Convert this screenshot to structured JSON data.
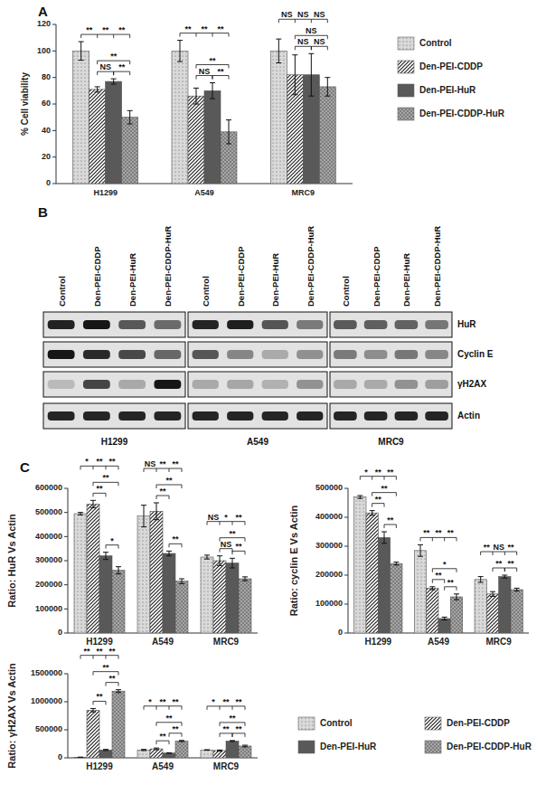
{
  "panel_labels": [
    "A",
    "B",
    "C"
  ],
  "chart_data": [
    {
      "type": "bar",
      "y_label": "% Cell viability",
      "categories": [
        "H1299",
        "A549",
        "MRC9"
      ],
      "series": [
        {
          "name": "Control",
          "color": "#d9d9d9",
          "values": [
            100,
            100,
            100
          ],
          "errors": [
            7,
            8,
            9
          ]
        },
        {
          "name": "Den-PEI-CDDP",
          "color": "#222222",
          "values": [
            71,
            66,
            82
          ],
          "errors": [
            2,
            6,
            15
          ]
        },
        {
          "name": "Den-PEI-HuR",
          "color": "#595959",
          "values": [
            77,
            70,
            82
          ],
          "errors": [
            2,
            6,
            16
          ]
        },
        {
          "name": "Den-PEI-CDDP-HuR",
          "color": "#a6a6a6",
          "values": [
            50,
            39,
            73
          ],
          "errors": [
            5,
            9,
            7
          ]
        }
      ],
      "ylim": [
        0,
        120
      ],
      "yticks": [
        0,
        20,
        40,
        60,
        80,
        100,
        120
      ],
      "legend": "right",
      "annotations": [
        {
          "category": "H1299",
          "between": [
            "Control",
            "Den-PEI-CDDP"
          ],
          "text": "**"
        },
        {
          "category": "H1299",
          "between": [
            "Control",
            "Den-PEI-HuR"
          ],
          "text": "**"
        },
        {
          "category": "H1299",
          "between": [
            "Control",
            "Den-PEI-CDDP-HuR"
          ],
          "text": "**"
        },
        {
          "category": "H1299",
          "between": [
            "Den-PEI-CDDP",
            "Den-PEI-HuR"
          ],
          "text": "NS"
        },
        {
          "category": "H1299",
          "between": [
            "Den-PEI-HuR",
            "Den-PEI-CDDP-HuR"
          ],
          "text": "**"
        },
        {
          "category": "H1299",
          "between": [
            "Den-PEI-CDDP",
            "Den-PEI-CDDP-HuR"
          ],
          "text": "**"
        },
        {
          "category": "A549",
          "between": [
            "Control",
            "Den-PEI-CDDP"
          ],
          "text": "**"
        },
        {
          "category": "A549",
          "between": [
            "Control",
            "Den-PEI-HuR"
          ],
          "text": "**"
        },
        {
          "category": "A549",
          "between": [
            "Control",
            "Den-PEI-CDDP-HuR"
          ],
          "text": "**"
        },
        {
          "category": "A549",
          "between": [
            "Den-PEI-CDDP",
            "Den-PEI-HuR"
          ],
          "text": "NS"
        },
        {
          "category": "A549",
          "between": [
            "Den-PEI-HuR",
            "Den-PEI-CDDP-HuR"
          ],
          "text": "**"
        },
        {
          "category": "A549",
          "between": [
            "Den-PEI-CDDP",
            "Den-PEI-CDDP-HuR"
          ],
          "text": "**"
        },
        {
          "category": "MRC9",
          "between": [
            "Control",
            "Den-PEI-CDDP"
          ],
          "text": "NS"
        },
        {
          "category": "MRC9",
          "between": [
            "Control",
            "Den-PEI-HuR"
          ],
          "text": "NS"
        },
        {
          "category": "MRC9",
          "between": [
            "Control",
            "Den-PEI-CDDP-HuR"
          ],
          "text": "NS"
        },
        {
          "category": "MRC9",
          "between": [
            "Den-PEI-CDDP",
            "Den-PEI-HuR"
          ],
          "text": "NS"
        },
        {
          "category": "MRC9",
          "between": [
            "Den-PEI-HuR",
            "Den-PEI-CDDP-HuR"
          ],
          "text": "NS"
        },
        {
          "category": "MRC9",
          "between": [
            "Den-PEI-CDDP",
            "Den-PEI-CDDP-HuR"
          ],
          "text": "NS"
        }
      ]
    },
    {
      "type": "bar",
      "y_label": "Ratio: HuR Vs Actin",
      "categories": [
        "H1299",
        "A549",
        "MRC9"
      ],
      "series": [
        {
          "name": "Control",
          "color": "#d9d9d9",
          "values": [
            495000,
            485000,
            315000
          ],
          "errors": [
            5000,
            45000,
            8000
          ]
        },
        {
          "name": "Den-PEI-CDDP",
          "color": "#222222",
          "values": [
            535000,
            505000,
            300000
          ],
          "errors": [
            15000,
            35000,
            20000
          ]
        },
        {
          "name": "Den-PEI-HuR",
          "color": "#595959",
          "values": [
            320000,
            330000,
            290000
          ],
          "errors": [
            15000,
            10000,
            20000
          ]
        },
        {
          "name": "Den-PEI-CDDP-HuR",
          "color": "#a6a6a6",
          "values": [
            260000,
            215000,
            225000
          ],
          "errors": [
            15000,
            10000,
            8000
          ]
        }
      ],
      "ylim": [
        0,
        600000
      ],
      "yticks": [
        0,
        100000,
        200000,
        300000,
        400000,
        500000,
        600000
      ],
      "annotations": [
        {
          "category": "H1299",
          "between": [
            "Control",
            "Den-PEI-CDDP"
          ],
          "text": "*"
        },
        {
          "category": "H1299",
          "between": [
            "Control",
            "Den-PEI-HuR"
          ],
          "text": "**"
        },
        {
          "category": "H1299",
          "between": [
            "Control",
            "Den-PEI-CDDP-HuR"
          ],
          "text": "**"
        },
        {
          "category": "H1299",
          "between": [
            "Den-PEI-CDDP",
            "Den-PEI-HuR"
          ],
          "text": "**"
        },
        {
          "category": "H1299",
          "between": [
            "Den-PEI-HuR",
            "Den-PEI-CDDP-HuR"
          ],
          "text": "*"
        },
        {
          "category": "H1299",
          "between": [
            "Den-PEI-CDDP",
            "Den-PEI-CDDP-HuR"
          ],
          "text": "**"
        },
        {
          "category": "A549",
          "between": [
            "Control",
            "Den-PEI-CDDP"
          ],
          "text": "NS"
        },
        {
          "category": "A549",
          "between": [
            "Control",
            "Den-PEI-HuR"
          ],
          "text": "**"
        },
        {
          "category": "A549",
          "between": [
            "Control",
            "Den-PEI-CDDP-HuR"
          ],
          "text": "**"
        },
        {
          "category": "A549",
          "between": [
            "Den-PEI-CDDP",
            "Den-PEI-HuR"
          ],
          "text": "**"
        },
        {
          "category": "A549",
          "between": [
            "Den-PEI-HuR",
            "Den-PEI-CDDP-HuR"
          ],
          "text": "**"
        },
        {
          "category": "A549",
          "between": [
            "Den-PEI-CDDP",
            "Den-PEI-CDDP-HuR"
          ],
          "text": "**"
        },
        {
          "category": "MRC9",
          "between": [
            "Control",
            "Den-PEI-CDDP"
          ],
          "text": "NS"
        },
        {
          "category": "MRC9",
          "between": [
            "Control",
            "Den-PEI-HuR"
          ],
          "text": "*"
        },
        {
          "category": "MRC9",
          "between": [
            "Control",
            "Den-PEI-CDDP-HuR"
          ],
          "text": "**"
        },
        {
          "category": "MRC9",
          "between": [
            "Den-PEI-CDDP",
            "Den-PEI-HuR"
          ],
          "text": "NS"
        },
        {
          "category": "MRC9",
          "between": [
            "Den-PEI-HuR",
            "Den-PEI-CDDP-HuR"
          ],
          "text": "**"
        },
        {
          "category": "MRC9",
          "between": [
            "Den-PEI-CDDP",
            "Den-PEI-CDDP-HuR"
          ],
          "text": "**"
        }
      ]
    },
    {
      "type": "bar",
      "y_label": "Ratio: cyclin E Vs Actin",
      "categories": [
        "H1299",
        "A549",
        "MRC9"
      ],
      "series": [
        {
          "name": "Control",
          "color": "#d9d9d9",
          "values": [
            470000,
            285000,
            185000
          ],
          "errors": [
            5000,
            20000,
            10000
          ]
        },
        {
          "name": "Den-PEI-CDDP",
          "color": "#222222",
          "values": [
            415000,
            155000,
            135000
          ],
          "errors": [
            8000,
            5000,
            8000
          ]
        },
        {
          "name": "Den-PEI-HuR",
          "color": "#595959",
          "values": [
            330000,
            50000,
            195000
          ],
          "errors": [
            20000,
            5000,
            5000
          ]
        },
        {
          "name": "Den-PEI-CDDP-HuR",
          "color": "#a6a6a6",
          "values": [
            240000,
            125000,
            150000
          ],
          "errors": [
            5000,
            10000,
            5000
          ]
        }
      ],
      "ylim": [
        0,
        500000
      ],
      "yticks": [
        0,
        100000,
        200000,
        300000,
        400000,
        500000
      ],
      "annotations": [
        {
          "category": "H1299",
          "between": [
            "Control",
            "Den-PEI-CDDP"
          ],
          "text": "*"
        },
        {
          "category": "H1299",
          "between": [
            "Control",
            "Den-PEI-HuR"
          ],
          "text": "**"
        },
        {
          "category": "H1299",
          "between": [
            "Control",
            "Den-PEI-CDDP-HuR"
          ],
          "text": "**"
        },
        {
          "category": "H1299",
          "between": [
            "Den-PEI-CDDP",
            "Den-PEI-HuR"
          ],
          "text": "**"
        },
        {
          "category": "H1299",
          "between": [
            "Den-PEI-HuR",
            "Den-PEI-CDDP-HuR"
          ],
          "text": "**"
        },
        {
          "category": "H1299",
          "between": [
            "Den-PEI-CDDP",
            "Den-PEI-CDDP-HuR"
          ],
          "text": "**"
        },
        {
          "category": "A549",
          "between": [
            "Control",
            "Den-PEI-CDDP"
          ],
          "text": "**"
        },
        {
          "category": "A549",
          "between": [
            "Control",
            "Den-PEI-HuR"
          ],
          "text": "**"
        },
        {
          "category": "A549",
          "between": [
            "Control",
            "Den-PEI-CDDP-HuR"
          ],
          "text": "**"
        },
        {
          "category": "A549",
          "between": [
            "Den-PEI-CDDP",
            "Den-PEI-HuR"
          ],
          "text": "**"
        },
        {
          "category": "A549",
          "between": [
            "Den-PEI-HuR",
            "Den-PEI-CDDP-HuR"
          ],
          "text": "**"
        },
        {
          "category": "A549",
          "between": [
            "Den-PEI-CDDP",
            "Den-PEI-CDDP-HuR"
          ],
          "text": "*"
        },
        {
          "category": "MRC9",
          "between": [
            "Control",
            "Den-PEI-CDDP"
          ],
          "text": "**"
        },
        {
          "category": "MRC9",
          "between": [
            "Control",
            "Den-PEI-HuR"
          ],
          "text": "NS"
        },
        {
          "category": "MRC9",
          "between": [
            "Control",
            "Den-PEI-CDDP-HuR"
          ],
          "text": "**"
        },
        {
          "category": "MRC9",
          "between": [
            "Den-PEI-CDDP",
            "Den-PEI-HuR"
          ],
          "text": "**"
        },
        {
          "category": "MRC9",
          "between": [
            "Den-PEI-HuR",
            "Den-PEI-CDDP-HuR"
          ],
          "text": "**"
        }
      ]
    },
    {
      "type": "bar",
      "y_label": "Ratio: γH2AX Vs Actin",
      "categories": [
        "H1299",
        "A549",
        "MRC9"
      ],
      "series": [
        {
          "name": "Control",
          "color": "#d9d9d9",
          "values": [
            10000,
            140000,
            140000
          ],
          "errors": [
            3000,
            10000,
            5000
          ]
        },
        {
          "name": "Den-PEI-CDDP",
          "color": "#222222",
          "values": [
            850000,
            160000,
            130000
          ],
          "errors": [
            30000,
            15000,
            10000
          ]
        },
        {
          "name": "Den-PEI-HuR",
          "color": "#595959",
          "values": [
            140000,
            85000,
            300000
          ],
          "errors": [
            10000,
            5000,
            8000
          ]
        },
        {
          "name": "Den-PEI-CDDP-HuR",
          "color": "#a6a6a6",
          "values": [
            1190000,
            300000,
            210000
          ],
          "errors": [
            25000,
            10000,
            15000
          ]
        }
      ],
      "ylim": [
        0,
        1500000
      ],
      "yticks": [
        0,
        500000,
        1000000,
        1500000
      ],
      "legend": "right",
      "annotations": [
        {
          "category": "H1299",
          "between": [
            "Control",
            "Den-PEI-CDDP"
          ],
          "text": "**"
        },
        {
          "category": "H1299",
          "between": [
            "Control",
            "Den-PEI-HuR"
          ],
          "text": "**"
        },
        {
          "category": "H1299",
          "between": [
            "Control",
            "Den-PEI-CDDP-HuR"
          ],
          "text": "**"
        },
        {
          "category": "H1299",
          "between": [
            "Den-PEI-CDDP",
            "Den-PEI-HuR"
          ],
          "text": "**"
        },
        {
          "category": "H1299",
          "between": [
            "Den-PEI-HuR",
            "Den-PEI-CDDP-HuR"
          ],
          "text": "**"
        },
        {
          "category": "H1299",
          "between": [
            "Den-PEI-CDDP",
            "Den-PEI-CDDP-HuR"
          ],
          "text": "**"
        },
        {
          "category": "A549",
          "between": [
            "Control",
            "Den-PEI-CDDP"
          ],
          "text": "*"
        },
        {
          "category": "A549",
          "between": [
            "Control",
            "Den-PEI-HuR"
          ],
          "text": "**"
        },
        {
          "category": "A549",
          "between": [
            "Control",
            "Den-PEI-CDDP-HuR"
          ],
          "text": "**"
        },
        {
          "category": "A549",
          "between": [
            "Den-PEI-CDDP",
            "Den-PEI-HuR"
          ],
          "text": "**"
        },
        {
          "category": "A549",
          "between": [
            "Den-PEI-HuR",
            "Den-PEI-CDDP-HuR"
          ],
          "text": "**"
        },
        {
          "category": "A549",
          "between": [
            "Den-PEI-CDDP",
            "Den-PEI-CDDP-HuR"
          ],
          "text": "**"
        },
        {
          "category": "MRC9",
          "between": [
            "Control",
            "Den-PEI-CDDP"
          ],
          "text": "*"
        },
        {
          "category": "MRC9",
          "between": [
            "Control",
            "Den-PEI-HuR"
          ],
          "text": "**"
        },
        {
          "category": "MRC9",
          "between": [
            "Control",
            "Den-PEI-CDDP-HuR"
          ],
          "text": "**"
        },
        {
          "category": "MRC9",
          "between": [
            "Den-PEI-CDDP",
            "Den-PEI-HuR"
          ],
          "text": "**"
        },
        {
          "category": "MRC9",
          "between": [
            "Den-PEI-HuR",
            "Den-PEI-CDDP-HuR"
          ],
          "text": "**"
        },
        {
          "category": "MRC9",
          "between": [
            "Den-PEI-CDDP",
            "Den-PEI-CDDP-HuR"
          ],
          "text": "**"
        }
      ]
    }
  ],
  "blot": {
    "cell_lines": [
      "H1299",
      "A549",
      "MRC9"
    ],
    "lanes": [
      "Control",
      "Den-PEI-CDDP",
      "Den-PEI-HuR",
      "Den-PEI-CDDP-HuR"
    ],
    "rows": [
      "HuR",
      "Cyclin E",
      "γH2AX",
      "Actin"
    ]
  }
}
